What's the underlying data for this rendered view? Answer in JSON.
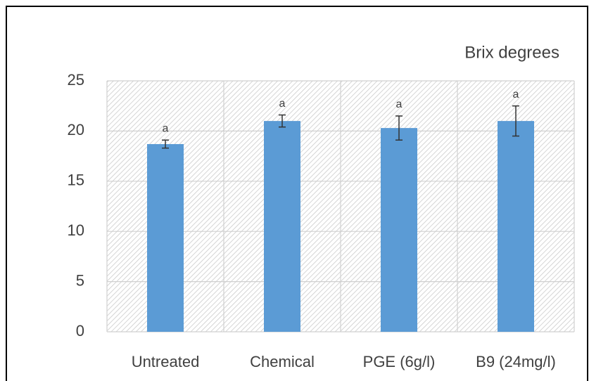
{
  "chart_data": {
    "type": "bar",
    "title": "Brix degrees",
    "categories": [
      "Untreated",
      "Chemical",
      "PGE (6g/l)",
      "B9 (24mg/l)"
    ],
    "values": [
      18.7,
      21.0,
      20.3,
      21.0
    ],
    "errors": [
      0.4,
      0.6,
      1.2,
      1.5
    ],
    "significance": [
      "a",
      "a",
      "a",
      "a"
    ],
    "color": "#5b9bd5",
    "ylim": [
      0,
      25
    ],
    "yticks": [
      0,
      5,
      10,
      15,
      20,
      25
    ],
    "grid": true
  }
}
